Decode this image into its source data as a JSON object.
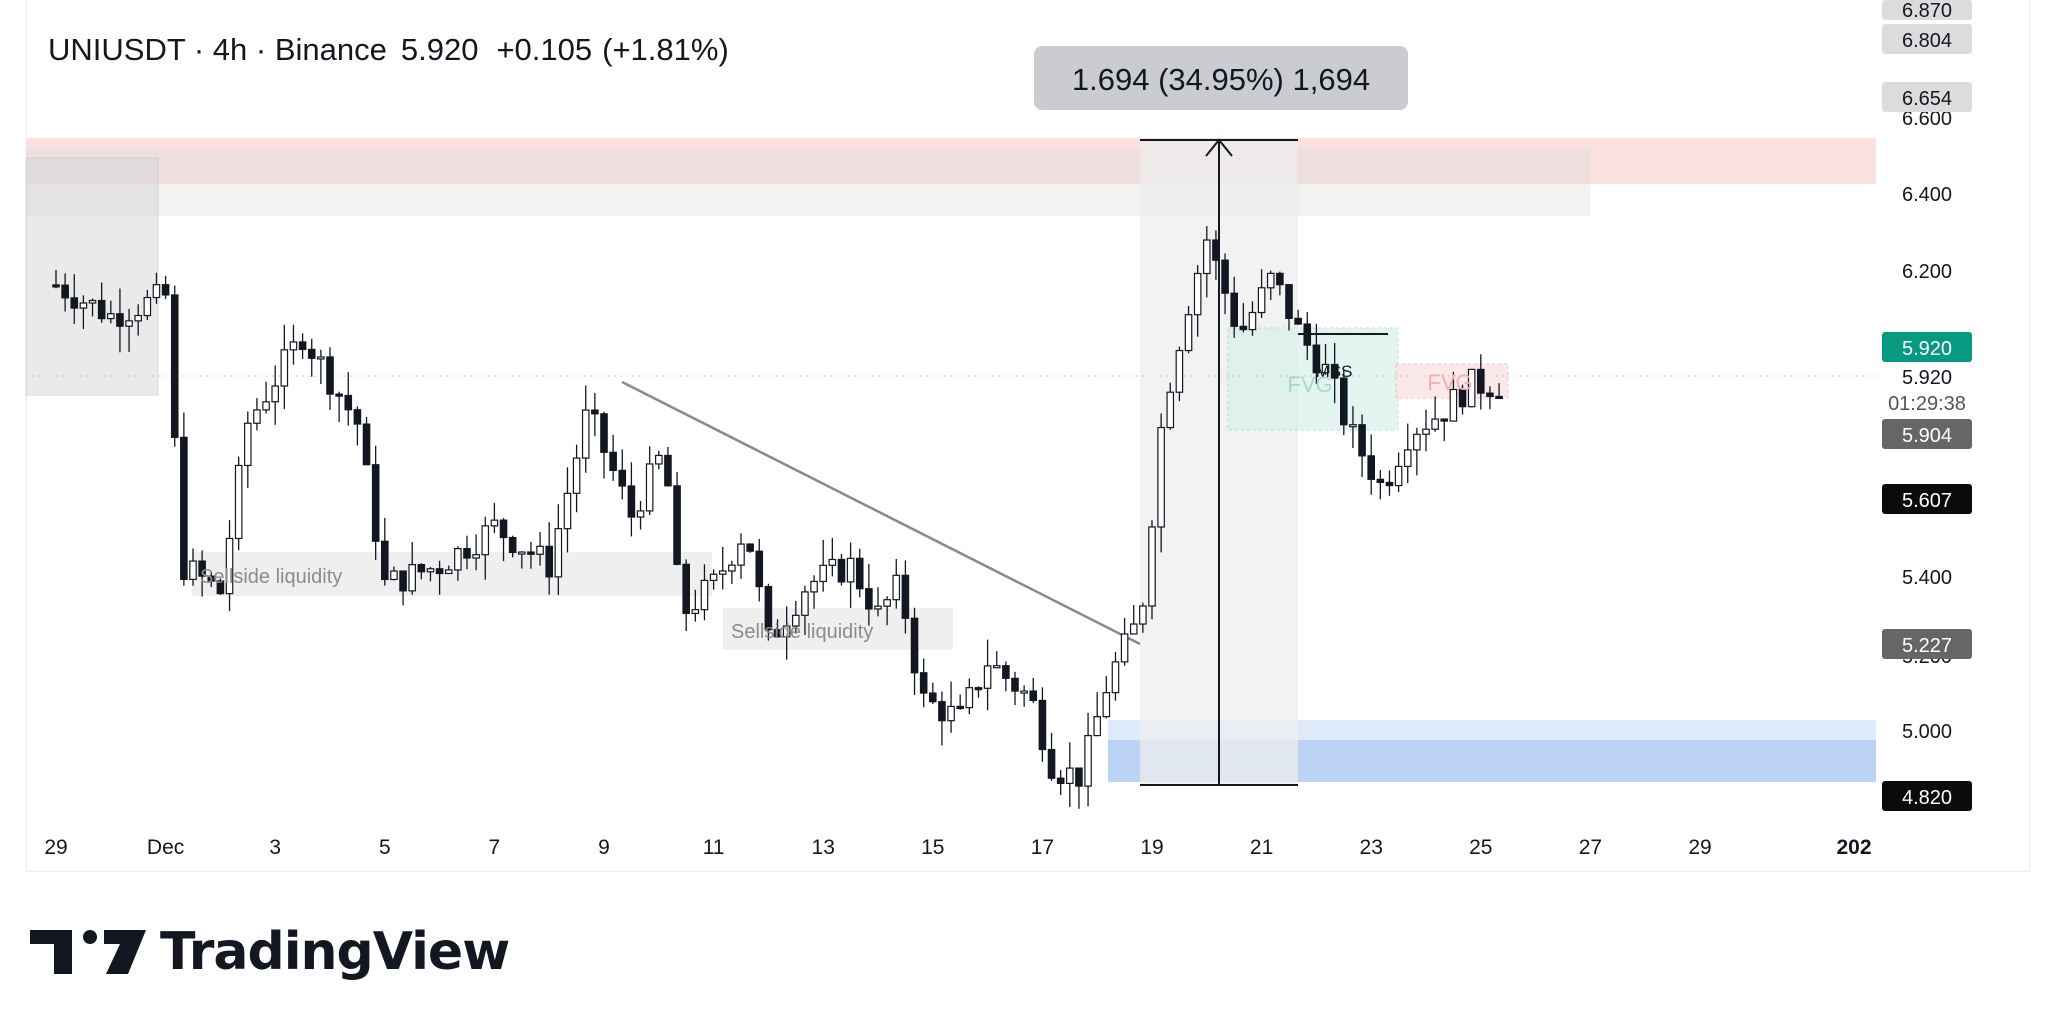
{
  "header": {
    "symbol": "UNIUSDT",
    "interval": "4h",
    "exchange": "Binance",
    "last": "5.920",
    "change": "+0.105",
    "change_pct": "(+1.81%)"
  },
  "brand": {
    "name": "TradingView"
  },
  "measure_label": "1.694 (34.95%) 1,694",
  "axis_labels": {
    "top_a": "6.870",
    "top_b": "6.804",
    "top_c": "6.654",
    "p6600": "6.600",
    "p6400": "6.400",
    "p6200": "6.200",
    "p5920_badge": "5.920",
    "p5920": "5.920",
    "countdown": "01:29:38",
    "p5904": "5.904",
    "p5607": "5.607",
    "p5400": "5.400",
    "p5227": "5.227",
    "p5200": "5.200",
    "p5000": "5.000",
    "p4820": "4.820"
  },
  "annotations": {
    "sellside_1": "Sellside liquidity",
    "sellside_2": "Sellside liquidity",
    "mss": "MSS",
    "fvg_bull": "FVG",
    "fvg_bear": "FVG"
  },
  "colors": {
    "up": "#ffffff",
    "down": "#131722",
    "last_price": "#089981",
    "resistance_zone": "#f9d6d6",
    "demand_zone": "#b9d2f6"
  },
  "chart_data": {
    "type": "candlestick",
    "symbol": "UNIUSDT",
    "timeframe": "4h",
    "x_ticks": [
      "29",
      "Dec",
      "3",
      "5",
      "7",
      "9",
      "11",
      "13",
      "15",
      "17",
      "19",
      "21",
      "23",
      "25",
      "27",
      "29",
      "202"
    ],
    "y_ticks": [
      5.0,
      5.2,
      5.4,
      5.6,
      5.8,
      6.0,
      6.2,
      6.4,
      6.6
    ],
    "ylim": [
      4.65,
      6.9
    ],
    "last_price": 5.92,
    "marked_levels": [
      6.87,
      6.804,
      6.654,
      5.904,
      5.607,
      5.227,
      4.82
    ],
    "measure": {
      "from": 4.82,
      "to": 6.514,
      "change": 1.694,
      "pct": 34.95
    },
    "close_path": [
      {
        "x": 0.0,
        "close": 6.18
      },
      {
        "x": 1.0,
        "close": 6.1
      },
      {
        "x": 2.0,
        "close": 6.15
      },
      {
        "x": 2.3,
        "close": 5.45
      },
      {
        "x": 3.0,
        "close": 5.38
      },
      {
        "x": 3.5,
        "close": 5.82
      },
      {
        "x": 4.5,
        "close": 6.05
      },
      {
        "x": 5.5,
        "close": 5.82
      },
      {
        "x": 6.0,
        "close": 5.4
      },
      {
        "x": 7.0,
        "close": 5.45
      },
      {
        "x": 8.0,
        "close": 5.55
      },
      {
        "x": 9.0,
        "close": 5.45
      },
      {
        "x": 9.7,
        "close": 5.85
      },
      {
        "x": 10.5,
        "close": 5.58
      },
      {
        "x": 11.1,
        "close": 5.75
      },
      {
        "x": 11.4,
        "close": 5.32
      },
      {
        "x": 12.0,
        "close": 5.4
      },
      {
        "x": 12.6,
        "close": 5.55
      },
      {
        "x": 13.0,
        "close": 5.25
      },
      {
        "x": 13.7,
        "close": 5.4
      },
      {
        "x": 14.5,
        "close": 5.45
      },
      {
        "x": 15.0,
        "close": 5.32
      },
      {
        "x": 15.4,
        "close": 5.4
      },
      {
        "x": 15.8,
        "close": 5.1
      },
      {
        "x": 16.5,
        "close": 5.05
      },
      {
        "x": 17.0,
        "close": 5.2
      },
      {
        "x": 17.8,
        "close": 5.1
      },
      {
        "x": 18.2,
        "close": 4.92
      },
      {
        "x": 18.7,
        "close": 4.9
      },
      {
        "x": 19.2,
        "close": 5.15
      },
      {
        "x": 19.8,
        "close": 5.32
      },
      {
        "x": 20.2,
        "close": 5.85
      },
      {
        "x": 20.6,
        "close": 6.1
      },
      {
        "x": 21.0,
        "close": 6.3
      },
      {
        "x": 21.6,
        "close": 6.05
      },
      {
        "x": 22.2,
        "close": 6.2
      },
      {
        "x": 22.7,
        "close": 6.05
      },
      {
        "x": 23.2,
        "close": 5.95
      },
      {
        "x": 23.6,
        "close": 5.8
      },
      {
        "x": 24.2,
        "close": 5.65
      },
      {
        "x": 24.7,
        "close": 5.8
      },
      {
        "x": 25.3,
        "close": 5.85
      },
      {
        "x": 25.8,
        "close": 5.92
      },
      {
        "x": 26.5,
        "close": 5.92
      }
    ]
  }
}
